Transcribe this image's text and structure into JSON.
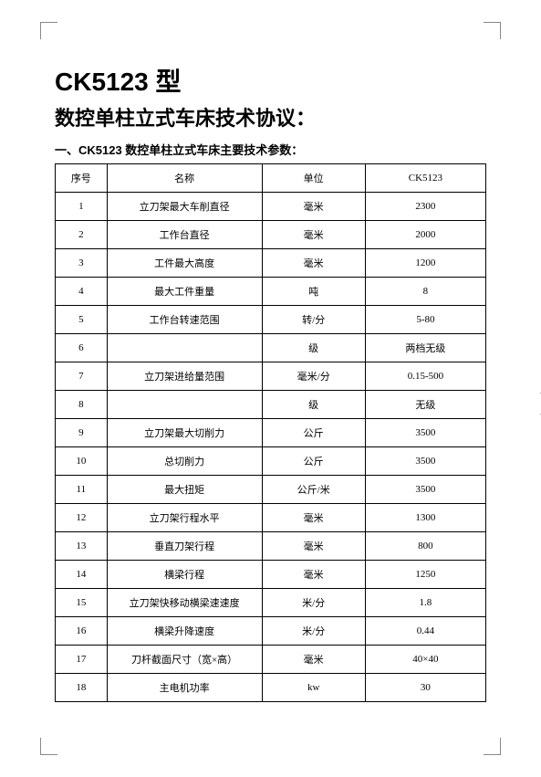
{
  "title_line1": "CK5123 型",
  "title_line2": "数控单柱立式车床技术协议：",
  "section_heading": "一、CK5123 数控单柱立式车床主要技术参数：",
  "table": {
    "headers": {
      "idx": "序号",
      "name": "名称",
      "unit": "单位",
      "val": "CK5123"
    },
    "rows": [
      {
        "idx": "1",
        "name": "立刀架最大车削直径",
        "unit": "毫米",
        "val": "2300"
      },
      {
        "idx": "2",
        "name": "工作台直径",
        "unit": "毫米",
        "val": "2000"
      },
      {
        "idx": "3",
        "name": "工件最大高度",
        "unit": "毫米",
        "val": "1200"
      },
      {
        "idx": "4",
        "name": "最大工件重量",
        "unit": "吨",
        "val": "8"
      },
      {
        "idx": "5",
        "name": "工作台转速范围",
        "unit": "转/分",
        "val": "5-80"
      },
      {
        "idx": "6",
        "name": "",
        "unit": "级",
        "val": "两档无级"
      },
      {
        "idx": "7",
        "name": "立刀架进给量范围",
        "unit": "毫米/分",
        "val": "0.15-500"
      },
      {
        "idx": "8",
        "name": "",
        "unit": "级",
        "val": "无级"
      },
      {
        "idx": "9",
        "name": "立刀架最大切削力",
        "unit": "公斤",
        "val": "3500"
      },
      {
        "idx": "10",
        "name": "总切削力",
        "unit": "公斤",
        "val": "3500"
      },
      {
        "idx": "11",
        "name": "最大扭矩",
        "unit": "公斤/米",
        "val": "3500"
      },
      {
        "idx": "12",
        "name": "立刀架行程水平",
        "unit": "毫米",
        "val": "1300"
      },
      {
        "idx": "13",
        "name": "垂直刀架行程",
        "unit": "毫米",
        "val": "800"
      },
      {
        "idx": "14",
        "name": "横梁行程",
        "unit": "毫米",
        "val": "1250"
      },
      {
        "idx": "15",
        "name": "立刀架快移动横梁速速度",
        "unit": "米/分",
        "val": "1.8"
      },
      {
        "idx": "16",
        "name": "横梁升降速度",
        "unit": "米/分",
        "val": "0.44"
      },
      {
        "idx": "17",
        "name": "刀杆截面尺寸（宽×高）",
        "unit": "毫米",
        "val": "40×40"
      },
      {
        "idx": "18",
        "name": "主电机功率",
        "unit": "kw",
        "val": "30"
      }
    ]
  },
  "side_tab_label": "+"
}
